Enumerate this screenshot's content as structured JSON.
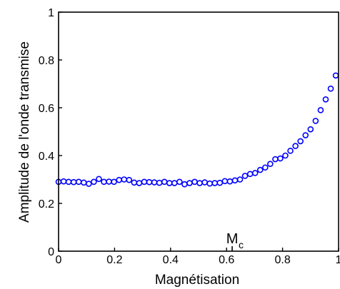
{
  "chart_data": {
    "type": "scatter",
    "title": "",
    "xlabel": "Magnétisation",
    "ylabel": "Amplitude de l'onde transmise",
    "xlim": [
      0,
      1
    ],
    "ylim": [
      0,
      1
    ],
    "xticks": [
      0,
      0.2,
      0.4,
      0.6,
      0.8,
      1
    ],
    "yticks": [
      0,
      0.2,
      0.4,
      0.6,
      0.8,
      1
    ],
    "xtick_labels": [
      "0",
      "0.2",
      "0.4",
      "0.6",
      "0.8",
      "1"
    ],
    "ytick_labels": [
      "0",
      "0.2",
      "0.4",
      "0.6",
      "0.8",
      "1"
    ],
    "grid": false,
    "legend": "none",
    "marker": "open-circle",
    "color": "#0000ff",
    "annotations": [
      {
        "label": "M",
        "subscript": "c",
        "x": 0.62
      }
    ],
    "series": [
      {
        "x": [
          0.0,
          0.018,
          0.036,
          0.054,
          0.072,
          0.09,
          0.108,
          0.126,
          0.144,
          0.162,
          0.18,
          0.198,
          0.216,
          0.234,
          0.252,
          0.27,
          0.288,
          0.306,
          0.324,
          0.342,
          0.36,
          0.378,
          0.396,
          0.414,
          0.432,
          0.45,
          0.468,
          0.486,
          0.504,
          0.522,
          0.54,
          0.558,
          0.576,
          0.594,
          0.612,
          0.63,
          0.648,
          0.666,
          0.684,
          0.702,
          0.72,
          0.738,
          0.756,
          0.774,
          0.792,
          0.81,
          0.828,
          0.846,
          0.864,
          0.882,
          0.9,
          0.918,
          0.936,
          0.954,
          0.972,
          0.99
        ],
        "y": [
          0.29,
          0.292,
          0.29,
          0.289,
          0.29,
          0.287,
          0.282,
          0.29,
          0.302,
          0.29,
          0.291,
          0.29,
          0.298,
          0.3,
          0.298,
          0.287,
          0.285,
          0.29,
          0.289,
          0.288,
          0.286,
          0.29,
          0.285,
          0.285,
          0.29,
          0.28,
          0.285,
          0.29,
          0.285,
          0.288,
          0.283,
          0.285,
          0.286,
          0.293,
          0.292,
          0.296,
          0.3,
          0.315,
          0.323,
          0.327,
          0.34,
          0.35,
          0.365,
          0.385,
          0.388,
          0.4,
          0.42,
          0.44,
          0.46,
          0.485,
          0.51,
          0.545,
          0.59,
          0.635,
          0.68,
          0.735
        ]
      }
    ]
  }
}
